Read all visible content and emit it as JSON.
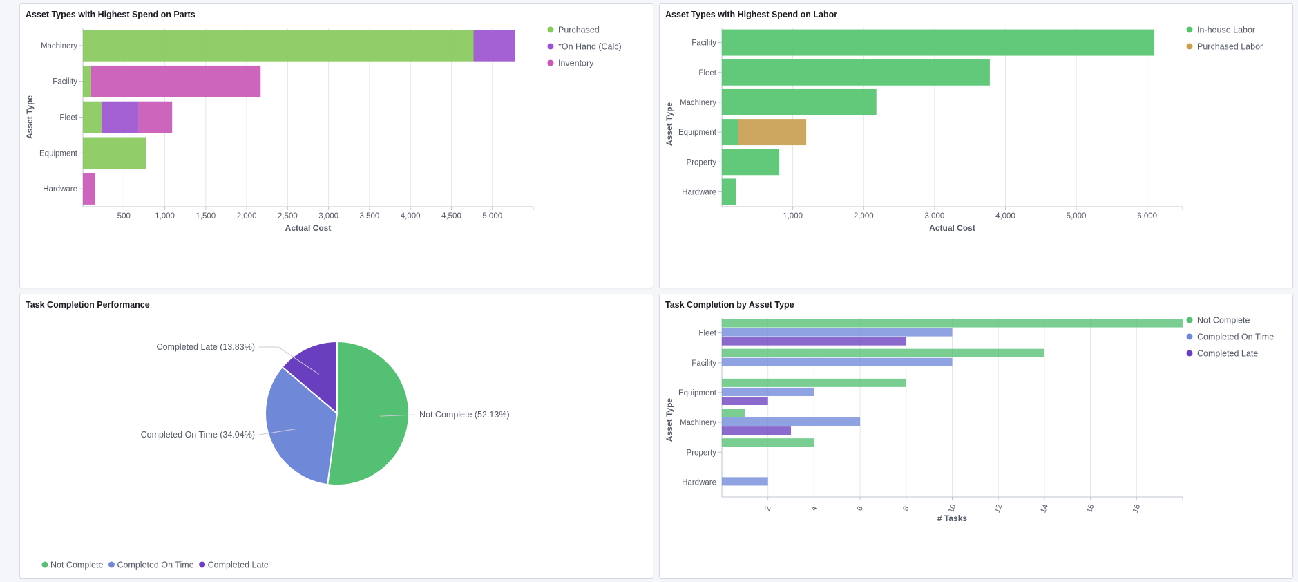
{
  "colors": {
    "purchased": "#88c95c",
    "on_hand": "#9b54cf",
    "inventory": "#c958b7",
    "inhouse_labor": "#54c46e",
    "purchased_labor": "#c9a052",
    "not_complete": "#54c073",
    "completed_on_time": "#6f88d8",
    "completed_late": "#6a3fbf",
    "grid": "#e3e6ec",
    "axis": "#bfc4cc",
    "label": "#535966"
  },
  "chart_data": [
    {
      "id": "parts",
      "type": "bar",
      "orientation": "horizontal",
      "stacked": true,
      "title": "Asset Types with Highest Spend on Parts",
      "xlabel": "Actual Cost",
      "ylabel": "Asset Type",
      "categories": [
        "Machinery",
        "Facility",
        "Fleet",
        "Equipment",
        "Hardware"
      ],
      "series": [
        {
          "name": "Purchased",
          "color_key": "purchased",
          "values": [
            4770,
            100,
            230,
            770,
            0
          ]
        },
        {
          "name": "*On Hand (Calc)",
          "color_key": "on_hand",
          "values": [
            510,
            0,
            450,
            0,
            0
          ]
        },
        {
          "name": "Inventory",
          "color_key": "inventory",
          "values": [
            0,
            2070,
            410,
            0,
            150
          ]
        }
      ],
      "xlim": [
        0,
        5500
      ],
      "xticks": [
        500,
        1000,
        1500,
        2000,
        2500,
        3000,
        3500,
        4000,
        4500,
        5000
      ],
      "xtick_labels": [
        "500",
        "1,000",
        "1,500",
        "2,000",
        "2,500",
        "3,000",
        "3,500",
        "4,000",
        "4,500",
        "5,000"
      ],
      "legend_position": "right"
    },
    {
      "id": "labor",
      "type": "bar",
      "orientation": "horizontal",
      "stacked": true,
      "title": "Asset Types with Highest Spend on Labor",
      "xlabel": "Actual Cost",
      "ylabel": "Asset Type",
      "categories": [
        "Facility",
        "Fleet",
        "Machinery",
        "Equipment",
        "Property",
        "Hardware"
      ],
      "series": [
        {
          "name": "In-house Labor",
          "color_key": "inhouse_labor",
          "values": [
            6100,
            3780,
            2180,
            230,
            810,
            200
          ]
        },
        {
          "name": "Purchased Labor",
          "color_key": "purchased_labor",
          "values": [
            0,
            0,
            0,
            960,
            0,
            0
          ]
        }
      ],
      "xlim": [
        0,
        6500
      ],
      "xticks": [
        1000,
        2000,
        3000,
        4000,
        5000,
        6000
      ],
      "xtick_labels": [
        "1,000",
        "2,000",
        "3,000",
        "4,000",
        "5,000",
        "6,000"
      ],
      "legend_position": "right"
    },
    {
      "id": "pie",
      "type": "pie",
      "title": "Task Completion Performance",
      "slices": [
        {
          "name": "Not Complete",
          "value": 52.13,
          "label": "Not Complete (52.13%)",
          "color_key": "not_complete"
        },
        {
          "name": "Completed On Time",
          "value": 34.04,
          "label": "Completed On Time (34.04%)",
          "color_key": "completed_on_time"
        },
        {
          "name": "Completed Late",
          "value": 13.83,
          "label": "Completed Late (13.83%)",
          "color_key": "completed_late"
        }
      ],
      "legend_position": "bottom-left"
    },
    {
      "id": "tasks",
      "type": "bar",
      "orientation": "horizontal",
      "stacked": false,
      "title": "Task Completion by Asset Type",
      "xlabel": "# Tasks",
      "ylabel": "Asset Type",
      "categories": [
        "Fleet",
        "Facility",
        "Equipment",
        "Machinery",
        "Property",
        "Hardware"
      ],
      "series": [
        {
          "name": "Not Complete",
          "color_key": "not_complete",
          "values": [
            20,
            14,
            8,
            1,
            4,
            0
          ]
        },
        {
          "name": "Completed On Time",
          "color_key": "completed_on_time",
          "values": [
            10,
            10,
            4,
            6,
            0,
            2
          ]
        },
        {
          "name": "Completed Late",
          "color_key": "completed_late",
          "values": [
            8,
            0,
            2,
            3,
            0,
            0
          ]
        }
      ],
      "xlim": [
        0,
        20
      ],
      "xticks": [
        2,
        4,
        6,
        8,
        10,
        12,
        14,
        16,
        18
      ],
      "xtick_labels": [
        "2",
        "4",
        "6",
        "8",
        "10",
        "12",
        "14",
        "16",
        "18"
      ],
      "legend_position": "right"
    }
  ]
}
